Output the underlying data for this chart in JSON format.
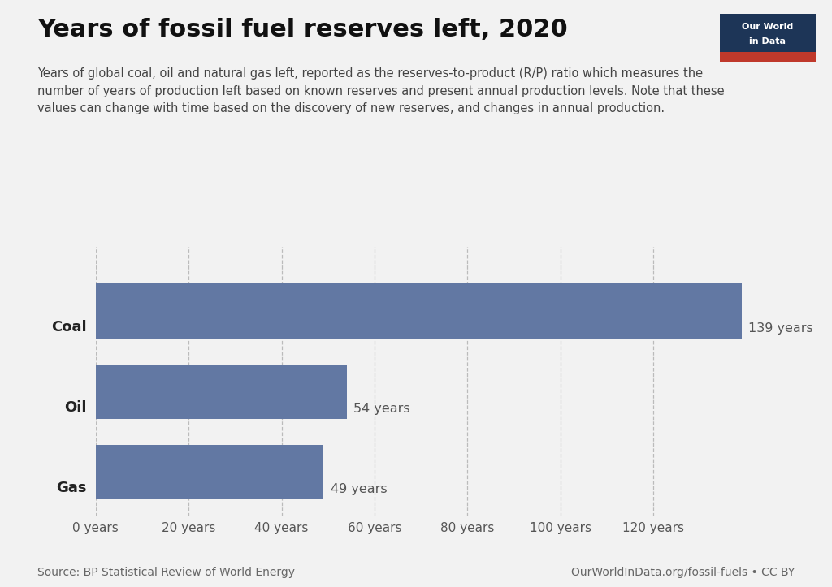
{
  "title": "Years of fossil fuel reserves left, 2020",
  "subtitle": "Years of global coal, oil and natural gas left, reported as the reserves-to-product (R/P) ratio which measures the\nnumber of years of production left based on known reserves and present annual production levels. Note that these\nvalues can change with time based on the discovery of new reserves, and changes in annual production.",
  "categories": [
    "Coal",
    "Oil",
    "Gas"
  ],
  "values": [
    139,
    54,
    49
  ],
  "labels": [
    "139 years",
    "54 years",
    "49 years"
  ],
  "bar_color": "#6278a3",
  "background_color": "#f2f2f2",
  "xticks": [
    0,
    20,
    40,
    60,
    80,
    100,
    120
  ],
  "xtick_labels": [
    "0 years",
    "20 years",
    "40 years",
    "60 years",
    "80 years",
    "100 years",
    "120 years"
  ],
  "xlim": [
    0,
    145
  ],
  "source_text": "Source: BP Statistical Review of World Energy",
  "credit_text": "OurWorldInData.org/fossil-fuels • CC BY",
  "logo_bg_color": "#1d3557",
  "logo_red_color": "#c0392b",
  "logo_text_line1": "Our World",
  "logo_text_line2": "in Data",
  "grid_color": "#bbbbbb",
  "title_fontsize": 22,
  "subtitle_fontsize": 10.5,
  "label_fontsize": 11.5,
  "tick_fontsize": 11,
  "source_fontsize": 10,
  "category_fontsize": 13,
  "bar_height": 0.68
}
